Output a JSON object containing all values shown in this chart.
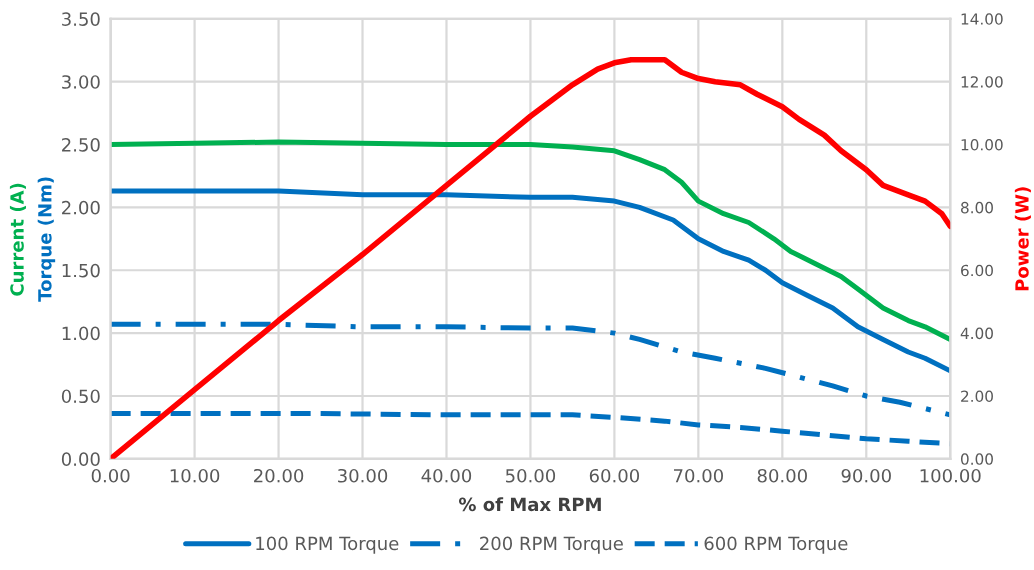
{
  "chart_data": {
    "type": "line",
    "xlabel": "% of Max RPM",
    "ylabel": "Torque (Nm)",
    "y2label": "Power (W)",
    "annotations": [
      "Current (A)"
    ],
    "xlim": [
      0,
      100
    ],
    "ylim": [
      0,
      3.5
    ],
    "y2lim": [
      0,
      14
    ],
    "xticks": [
      {
        "value": 0,
        "label": "0.00"
      },
      {
        "value": 10,
        "label": "10.00"
      },
      {
        "value": 20,
        "label": "20.00"
      },
      {
        "value": 30,
        "label": "30.00"
      },
      {
        "value": 40,
        "label": "40.00"
      },
      {
        "value": 50,
        "label": "50.00"
      },
      {
        "value": 60,
        "label": "60.00"
      },
      {
        "value": 70,
        "label": "70.00"
      },
      {
        "value": 80,
        "label": "80.00"
      },
      {
        "value": 90,
        "label": "90.00"
      },
      {
        "value": 100,
        "label": "100.00"
      }
    ],
    "yticks": [
      {
        "value": 0,
        "label": "0.00"
      },
      {
        "value": 0.5,
        "label": "0.50"
      },
      {
        "value": 1,
        "label": "1.00"
      },
      {
        "value": 1.5,
        "label": "1.50"
      },
      {
        "value": 2,
        "label": "2.00"
      },
      {
        "value": 2.5,
        "label": "2.50"
      },
      {
        "value": 3,
        "label": "3.00"
      },
      {
        "value": 3.5,
        "label": "3.50"
      }
    ],
    "y2ticks": [
      {
        "value": 0,
        "label": "0.00"
      },
      {
        "value": 2,
        "label": "2.00"
      },
      {
        "value": 4,
        "label": "4.00"
      },
      {
        "value": 6,
        "label": "6.00"
      },
      {
        "value": 8,
        "label": "8.00"
      },
      {
        "value": 10,
        "label": "10.00"
      },
      {
        "value": 12,
        "label": "12.00"
      },
      {
        "value": 14,
        "label": "14.00"
      }
    ],
    "grid": true,
    "legend": "bottom",
    "series": [
      {
        "color": "#00b050",
        "line_style": "solid",
        "x": [
          0,
          10,
          20,
          30,
          40,
          50,
          55,
          60,
          63,
          66,
          68,
          70,
          73,
          76,
          79,
          81,
          84,
          87,
          89,
          92,
          95,
          97,
          100
        ],
        "values": [
          2.5,
          2.51,
          2.52,
          2.51,
          2.5,
          2.5,
          2.48,
          2.45,
          2.38,
          2.3,
          2.2,
          2.05,
          1.95,
          1.88,
          1.75,
          1.65,
          1.55,
          1.45,
          1.35,
          1.2,
          1.1,
          1.05,
          0.95
        ]
      },
      {
        "name": "100 RPM Torque",
        "color": "#0070c0",
        "line_style": "solid",
        "x": [
          0,
          10,
          20,
          30,
          40,
          50,
          55,
          60,
          63,
          67,
          70,
          73,
          76,
          78,
          80,
          83,
          86,
          89,
          92,
          95,
          97,
          100
        ],
        "values": [
          2.13,
          2.13,
          2.13,
          2.1,
          2.1,
          2.08,
          2.08,
          2.05,
          2.0,
          1.9,
          1.75,
          1.65,
          1.58,
          1.5,
          1.4,
          1.3,
          1.2,
          1.05,
          0.95,
          0.85,
          0.8,
          0.7
        ]
      },
      {
        "name": "200 RPM Torque",
        "color": "#0070c0",
        "line_style": "dashdot",
        "x": [
          0,
          10,
          20,
          30,
          40,
          50,
          55,
          60,
          63,
          68,
          72,
          78,
          82,
          86,
          90,
          94,
          97,
          100
        ],
        "values": [
          1.07,
          1.07,
          1.07,
          1.05,
          1.05,
          1.04,
          1.04,
          1.0,
          0.95,
          0.85,
          0.8,
          0.72,
          0.65,
          0.58,
          0.5,
          0.45,
          0.4,
          0.35
        ]
      },
      {
        "name": "600 RPM Torque",
        "color": "#0070c0",
        "line_style": "dashed",
        "x": [
          0,
          10,
          25,
          40,
          55,
          60,
          66,
          70,
          75,
          80,
          85,
          90,
          95,
          100
        ],
        "values": [
          0.36,
          0.36,
          0.36,
          0.35,
          0.35,
          0.33,
          0.3,
          0.27,
          0.25,
          0.22,
          0.19,
          0.16,
          0.14,
          0.12
        ]
      },
      {
        "color": "#ff0000",
        "line_style": "solid",
        "axis": "y2",
        "x": [
          0,
          10,
          20,
          30,
          40,
          50,
          55,
          58,
          60,
          62,
          66,
          67,
          68,
          70,
          72,
          75,
          77,
          80,
          82,
          85,
          87,
          90,
          92,
          95,
          97,
          99,
          100
        ],
        "values": [
          0,
          2.2,
          4.4,
          6.5,
          8.7,
          10.9,
          11.9,
          12.4,
          12.6,
          12.7,
          12.7,
          12.5,
          12.3,
          12.1,
          12.0,
          11.9,
          11.6,
          11.2,
          10.8,
          10.3,
          9.8,
          9.2,
          8.7,
          8.4,
          8.2,
          7.8,
          7.4
        ]
      }
    ]
  }
}
